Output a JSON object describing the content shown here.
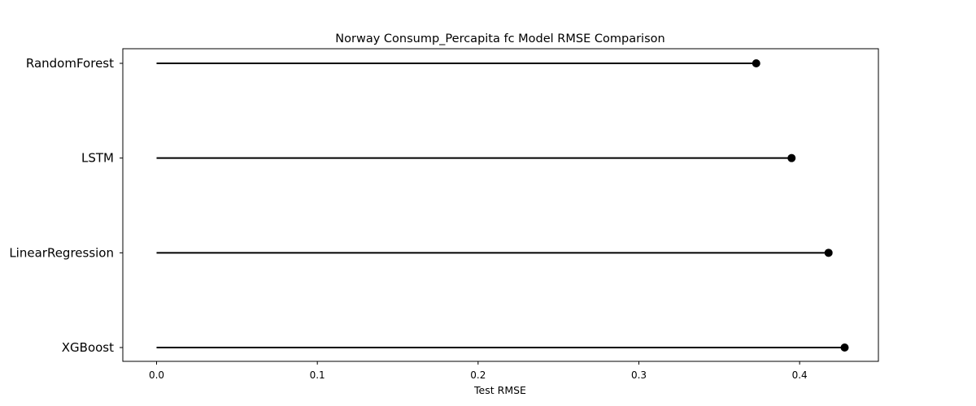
{
  "chart_data": {
    "type": "lollipop",
    "title": "Norway Consump_Percapita fc Model RMSE Comparison",
    "xlabel": "Test RMSE",
    "ylabel": "",
    "categories": [
      "RandomForest",
      "LSTM",
      "LinearRegression",
      "XGBoost"
    ],
    "values": [
      0.373,
      0.395,
      0.418,
      0.428
    ],
    "xlim": [
      -0.021,
      0.449
    ],
    "xticks": [
      0.0,
      0.1,
      0.2,
      0.3,
      0.4
    ],
    "xtick_labels": [
      "0.0",
      "0.1",
      "0.2",
      "0.3",
      "0.4"
    ],
    "grid": false,
    "legend": "none",
    "colors": {
      "stem": "#000000",
      "marker": "#000000",
      "frame": "#000000"
    }
  }
}
